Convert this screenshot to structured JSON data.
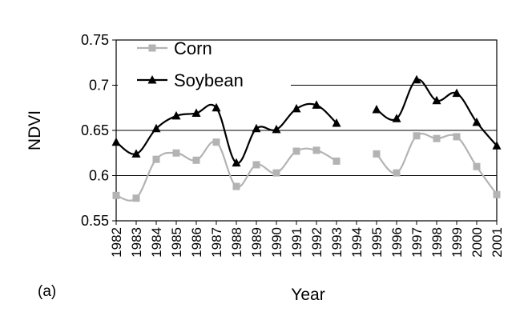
{
  "chart_data": {
    "type": "line",
    "panel_label": "(a)",
    "xlabel": "Year",
    "ylabel": "NDVI",
    "ylim": [
      0.55,
      0.75
    ],
    "yticks": [
      "0.55",
      "0.6",
      "0.65",
      "0.7",
      "0.75"
    ],
    "categories": [
      "1982",
      "1983",
      "1984",
      "1985",
      "1986",
      "1987",
      "1988",
      "1989",
      "1990",
      "1991",
      "1992",
      "1993",
      "1994",
      "1995",
      "1996",
      "1997",
      "1998",
      "1999",
      "2000",
      "2001"
    ],
    "grid": true,
    "legend_position": "top-left",
    "series": [
      {
        "name": "Corn",
        "color": "#b3b3b3",
        "marker": "square",
        "values": [
          0.578,
          0.575,
          0.618,
          0.625,
          0.617,
          0.637,
          0.588,
          0.612,
          0.603,
          0.627,
          0.628,
          0.616,
          null,
          0.624,
          0.603,
          0.644,
          0.641,
          0.643,
          0.61,
          0.579
        ]
      },
      {
        "name": "Soybean",
        "color": "#000000",
        "marker": "triangle",
        "values": [
          0.637,
          0.624,
          0.652,
          0.666,
          0.669,
          0.675,
          0.614,
          0.652,
          0.651,
          0.674,
          0.678,
          0.658,
          null,
          0.673,
          0.663,
          0.706,
          0.683,
          0.691,
          0.659,
          0.633
        ]
      }
    ]
  }
}
